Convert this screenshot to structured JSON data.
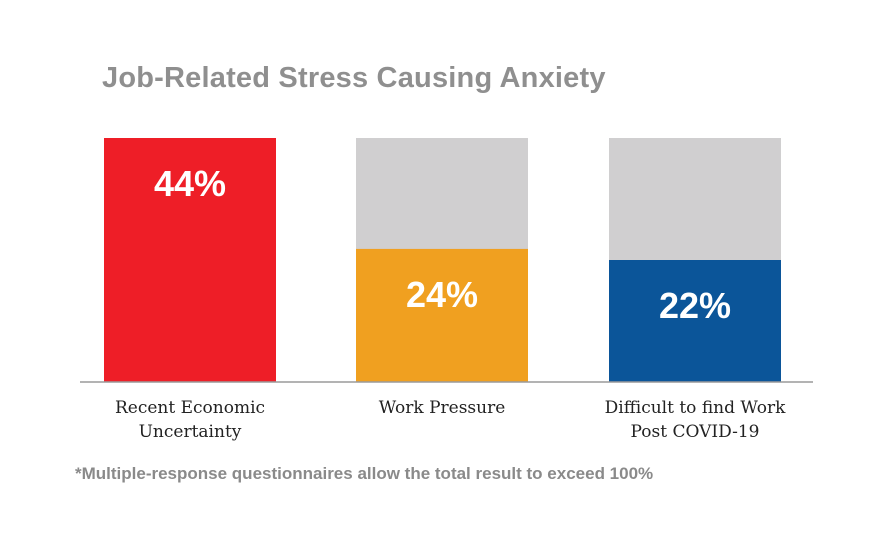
{
  "title": "Job-Related Stress Causing Anxiety",
  "footnote": "*Multiple-response questionnaires allow the total result to exceed 100%",
  "chart_data": {
    "type": "bar",
    "categories": [
      [
        "Recent Economic",
        "Uncertainty"
      ],
      [
        "Work Pressure"
      ],
      [
        "Difficult to find Work",
        "Post COVID-19"
      ]
    ],
    "values": [
      44,
      24,
      22
    ],
    "value_labels": [
      "44%",
      "24%",
      "22%"
    ],
    "colors": [
      "#ee1e27",
      "#f0a020",
      "#0b5599"
    ],
    "background_color": "#d0cfd0",
    "ylim": [
      0,
      44
    ],
    "grid": false,
    "legend": "none"
  }
}
